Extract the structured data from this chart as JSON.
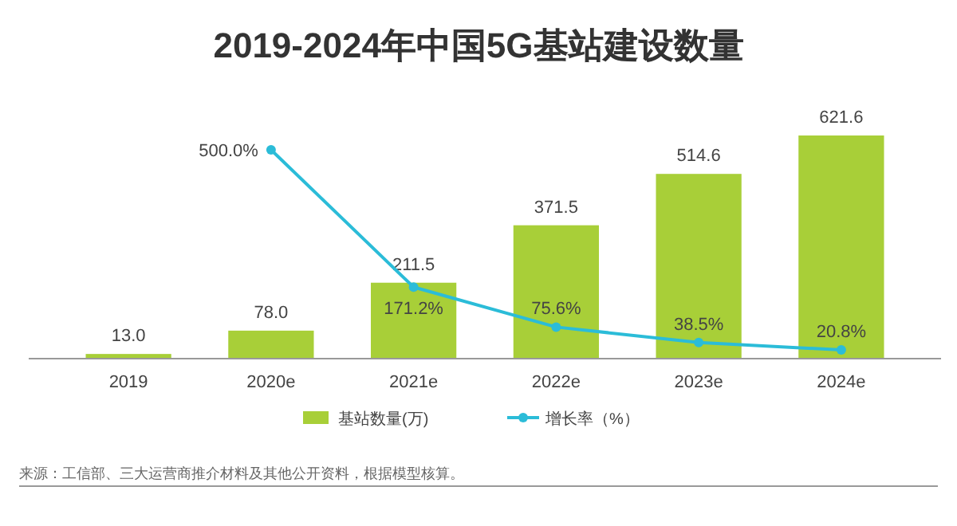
{
  "chart_data": {
    "type": "bar",
    "title": "2019-2024年中国5G基站建设数量",
    "categories": [
      "2019",
      "2020e",
      "2021e",
      "2022e",
      "2023e",
      "2024e"
    ],
    "series": [
      {
        "name": "基站数量(万)",
        "color": "#a8cf38",
        "values": [
          13.0,
          78.0,
          211.5,
          371.5,
          514.6,
          621.6
        ],
        "value_labels": [
          "13.0",
          "78.0",
          "211.5",
          "371.5",
          "514.6",
          "621.6"
        ]
      },
      {
        "name": "增长率（%）",
        "type": "line",
        "axis": "y2",
        "color": "#2bbcd8",
        "values": [
          null,
          500.0,
          171.2,
          75.6,
          38.5,
          20.8
        ],
        "value_labels": [
          null,
          "500.0%",
          "171.2%",
          "75.6%",
          "38.5%",
          "20.8%"
        ]
      }
    ],
    "tick_labels": "x",
    "data_labels": true,
    "legend": "bottom",
    "marker": "circle",
    "annotations": [
      "来源：工信部、三大运营商推介材料及其他公开资料，根据模型核算。"
    ]
  }
}
